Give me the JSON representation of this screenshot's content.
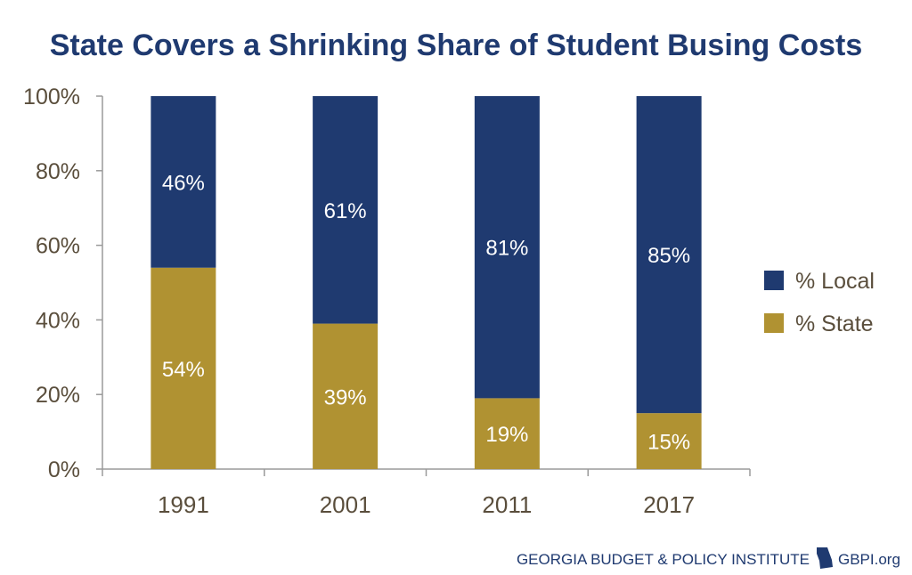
{
  "colors": {
    "local": "#1f3a70",
    "state": "#b09232",
    "title": "#1f3a70",
    "axis_text": "#5a4e3c",
    "axis_line": "#9a9a9a",
    "footer": "#1f3a70"
  },
  "chart_data": {
    "type": "bar",
    "stacked": true,
    "title": "State Covers a Shrinking Share of Student Busing Costs",
    "xlabel": "",
    "ylabel": "",
    "categories": [
      "1991",
      "2001",
      "2011",
      "2017"
    ],
    "series": [
      {
        "name": "% State",
        "values": [
          54,
          39,
          19,
          15
        ],
        "labels": [
          "54%",
          "39%",
          "19%",
          "15%"
        ]
      },
      {
        "name": "% Local",
        "values": [
          46,
          61,
          81,
          85
        ],
        "labels": [
          "46%",
          "61%",
          "81%",
          "85%"
        ]
      }
    ],
    "ylim": [
      0,
      100
    ],
    "y_ticks": [
      "0%",
      "20%",
      "40%",
      "60%",
      "80%",
      "100%"
    ],
    "grid": false,
    "legend_position": "right",
    "legend": [
      "% Local",
      "% State"
    ]
  },
  "footer": {
    "org": "GEORGIA BUDGET & POLICY INSTITUTE",
    "url": "GBPI.org",
    "logo_icon": "georgia-state-shape-icon"
  }
}
